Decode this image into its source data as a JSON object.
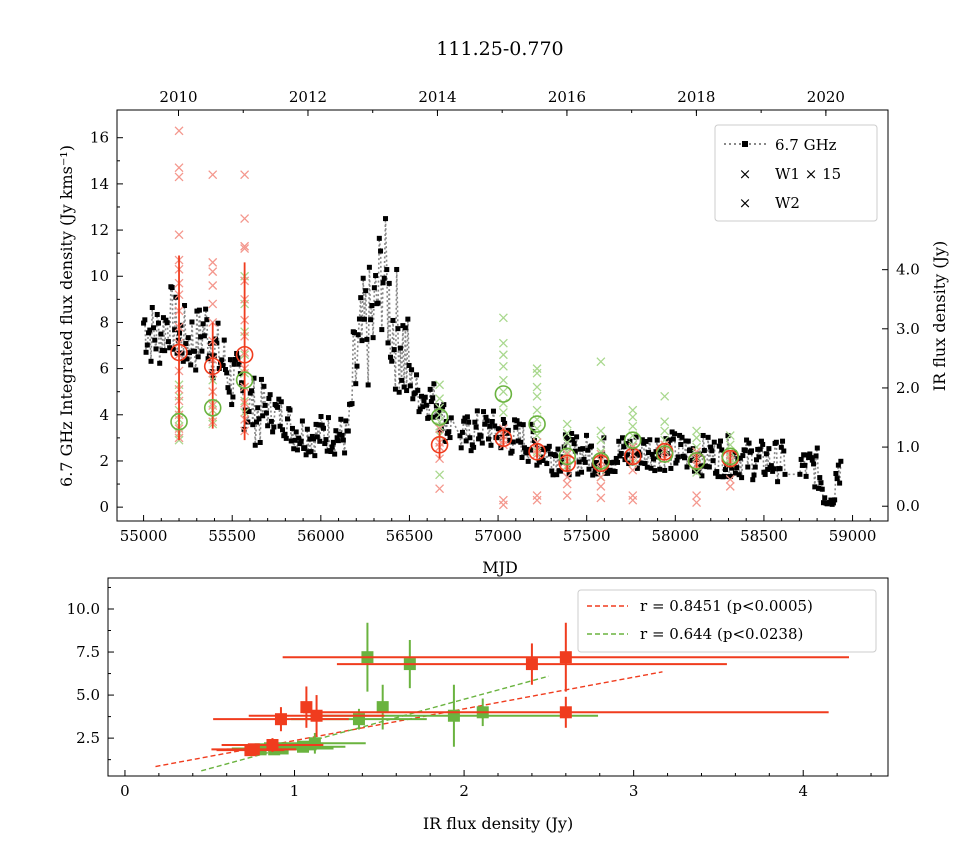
{
  "title": "111.25-0.770",
  "chart_data": [
    {
      "type": "scatter",
      "title": "111.25-0.770",
      "xlabel": "MJD",
      "ylabel": "6.7 GHz Integrated flux density (Jy kms⁻¹)",
      "ylabel_right": "IR flux density (Jy)",
      "xlim": [
        54850,
        59200
      ],
      "ylim": [
        -0.6,
        17.2
      ],
      "y2lim": [
        -0.25,
        6.7
      ],
      "xticks": [
        "55000",
        "55500",
        "56000",
        "56500",
        "57000",
        "57500",
        "58000",
        "58500",
        "59000"
      ],
      "yticks": [
        "0",
        "2",
        "4",
        "6",
        "8",
        "10",
        "12",
        "14",
        "16"
      ],
      "y2ticks": [
        "0.0",
        "1.0",
        "2.0",
        "3.0",
        "4.0"
      ],
      "top_axis_years": [
        "2010",
        "2012",
        "2014",
        "2016",
        "2018",
        "2020"
      ],
      "legend": {
        "placement": "top-right",
        "entries": [
          "6.7 GHz",
          "W1 × 15",
          "W2"
        ]
      },
      "colors": {
        "maser": "#000000",
        "maser_line": "#888888",
        "w1": "#f03c1e",
        "w2": "#6ab33f",
        "w1_light": "#f4978d",
        "w2_light": "#a9d88e"
      },
      "maser_keypoints": [
        [
          55000,
          8.0
        ],
        [
          55050,
          7.5
        ],
        [
          55100,
          7.5
        ],
        [
          55150,
          8.3
        ],
        [
          55200,
          7.4
        ],
        [
          55250,
          7.2
        ],
        [
          55300,
          7.2
        ],
        [
          55350,
          7.8
        ],
        [
          55400,
          6.8
        ],
        [
          55450,
          6.3
        ],
        [
          55500,
          5.5
        ],
        [
          55550,
          5.0
        ],
        [
          55600,
          4.4
        ],
        [
          55650,
          4.0
        ],
        [
          55700,
          4.2
        ],
        [
          55800,
          3.9
        ],
        [
          55850,
          3.3
        ],
        [
          55950,
          3.1
        ],
        [
          56050,
          3.2
        ],
        [
          56150,
          3.0
        ],
        [
          56200,
          6.0
        ],
        [
          56250,
          7.5
        ],
        [
          56300,
          8.0
        ],
        [
          56350,
          10.5
        ],
        [
          56400,
          8.0
        ],
        [
          56450,
          7.5
        ],
        [
          56500,
          5.5
        ],
        [
          56550,
          4.9
        ],
        [
          56600,
          4.7
        ],
        [
          56650,
          4.6
        ],
        [
          56700,
          3.7
        ],
        [
          56800,
          3.0
        ],
        [
          56900,
          3.4
        ],
        [
          57000,
          3.3
        ],
        [
          57100,
          3.0
        ],
        [
          57200,
          2.7
        ],
        [
          57300,
          2.3
        ],
        [
          57400,
          2.3
        ],
        [
          57500,
          2.3
        ],
        [
          57600,
          2.2
        ],
        [
          57700,
          2.3
        ],
        [
          57800,
          2.4
        ],
        [
          57900,
          2.5
        ],
        [
          58000,
          2.4
        ],
        [
          58100,
          2.3
        ],
        [
          58200,
          2.2
        ],
        [
          58300,
          2.2
        ],
        [
          58400,
          2.1
        ],
        [
          58500,
          2.0
        ],
        [
          58600,
          2.0
        ],
        [
          58700,
          1.7
        ],
        [
          58800,
          1.7
        ],
        [
          58870,
          0.0
        ],
        [
          58920,
          1.8
        ]
      ],
      "w1_means": [
        {
          "mjd": 55200,
          "y": 6.7,
          "ylo": 2.9,
          "yhi": 10.9
        },
        {
          "mjd": 55390,
          "y": 6.1,
          "ylo": 3.4,
          "yhi": 8.0
        },
        {
          "mjd": 55570,
          "y": 6.6,
          "ylo": 2.9,
          "yhi": 10.6
        },
        {
          "mjd": 56670,
          "y": 2.7,
          "ylo": 2.1,
          "yhi": 3.3
        },
        {
          "mjd": 57030,
          "y": 2.98,
          "ylo": 2.6,
          "yhi": 3.4
        },
        {
          "mjd": 57220,
          "y": 2.4,
          "ylo": 2.1,
          "yhi": 2.7
        },
        {
          "mjd": 57390,
          "y": 1.9,
          "ylo": 1.6,
          "yhi": 2.2
        },
        {
          "mjd": 57580,
          "y": 1.9,
          "ylo": 1.6,
          "yhi": 2.2
        },
        {
          "mjd": 57760,
          "y": 2.2,
          "ylo": 1.9,
          "yhi": 2.5
        },
        {
          "mjd": 57940,
          "y": 2.4,
          "ylo": 2.1,
          "yhi": 2.7
        },
        {
          "mjd": 58120,
          "y": 2.0,
          "ylo": 1.7,
          "yhi": 2.3
        },
        {
          "mjd": 58310,
          "y": 2.1,
          "ylo": 1.8,
          "yhi": 2.4
        }
      ],
      "w2_means": [
        {
          "mjd": 55200,
          "y": 3.7
        },
        {
          "mjd": 55390,
          "y": 4.3
        },
        {
          "mjd": 55570,
          "y": 5.5
        },
        {
          "mjd": 56670,
          "y": 3.9
        },
        {
          "mjd": 57030,
          "y": 4.9
        },
        {
          "mjd": 57220,
          "y": 3.6
        },
        {
          "mjd": 57390,
          "y": 2.2
        },
        {
          "mjd": 57580,
          "y": 2.0
        },
        {
          "mjd": 57760,
          "y": 2.9
        },
        {
          "mjd": 57940,
          "y": 2.3
        },
        {
          "mjd": 58120,
          "y": 2.0
        },
        {
          "mjd": 58310,
          "y": 2.2
        }
      ],
      "w1_epochs": [
        {
          "mjd": 55200,
          "values": [
            16.3,
            14.7,
            14.3,
            11.8,
            10.7,
            10.3,
            9.7,
            9.2,
            8.5,
            7.8,
            7.1,
            6.6,
            5.9,
            5.1,
            4.6,
            4.0,
            3.4,
            3.0
          ]
        },
        {
          "mjd": 55390,
          "values": [
            14.4,
            10.6,
            10.2,
            9.6,
            8.8,
            8.0,
            7.2,
            6.4,
            5.8,
            5.0,
            4.4,
            3.7
          ]
        },
        {
          "mjd": 55570,
          "values": [
            14.4,
            12.5,
            11.3,
            11.2,
            9.8,
            9.0,
            8.1,
            7.4,
            6.7,
            6.0,
            5.2,
            4.5,
            3.8,
            3.3
          ]
        },
        {
          "mjd": 56670,
          "values": [
            3.4,
            2.8,
            2.6,
            2.1,
            0.8
          ]
        },
        {
          "mjd": 57030,
          "values": [
            3.4,
            3.1,
            2.9,
            2.7,
            0.3,
            0.1
          ]
        },
        {
          "mjd": 57220,
          "values": [
            2.8,
            2.5,
            2.3,
            0.5,
            0.3
          ]
        },
        {
          "mjd": 57390,
          "values": [
            2.3,
            2.0,
            1.7,
            1.3,
            1.0,
            0.5
          ]
        },
        {
          "mjd": 57580,
          "values": [
            2.3,
            2.0,
            1.7,
            1.3,
            0.9,
            0.4
          ]
        },
        {
          "mjd": 57760,
          "values": [
            2.6,
            2.3,
            2.0,
            1.6,
            0.5,
            0.3
          ]
        },
        {
          "mjd": 57940,
          "values": [
            2.7,
            2.4,
            2.1
          ]
        },
        {
          "mjd": 58120,
          "values": [
            2.4,
            2.1,
            1.8,
            0.5,
            0.2
          ]
        },
        {
          "mjd": 58310,
          "values": [
            2.3,
            2.0,
            1.2,
            0.9
          ]
        }
      ],
      "w2_epochs": [
        {
          "mjd": 55200,
          "values": [
            5.3,
            4.8,
            4.2,
            3.8,
            3.5,
            3.2,
            2.9
          ]
        },
        {
          "mjd": 55390,
          "values": [
            5.5,
            5.0,
            4.5,
            4.2,
            3.9,
            3.6
          ]
        },
        {
          "mjd": 55570,
          "values": [
            10.0,
            8.8,
            7.6,
            6.6,
            5.8,
            5.2,
            4.6,
            4.1
          ]
        },
        {
          "mjd": 56670,
          "values": [
            5.3,
            4.7,
            4.3,
            4.0,
            3.7,
            3.5,
            3.1,
            1.4
          ]
        },
        {
          "mjd": 57030,
          "values": [
            8.2,
            7.1,
            6.6,
            6.1,
            5.5,
            5.0,
            4.5,
            4.1
          ]
        },
        {
          "mjd": 57220,
          "values": [
            6.0,
            5.8,
            5.2,
            4.8,
            4.2,
            3.8,
            3.4,
            3.1,
            2.8,
            2.4
          ]
        },
        {
          "mjd": 57390,
          "values": [
            3.6,
            3.2,
            2.8,
            2.4,
            2.1,
            1.8
          ]
        },
        {
          "mjd": 57580,
          "values": [
            6.3,
            3.3,
            2.9,
            2.4,
            2.0,
            1.6,
            1.3
          ]
        },
        {
          "mjd": 57760,
          "values": [
            4.2,
            3.9,
            3.5,
            3.1,
            2.7,
            2.3,
            1.9
          ]
        },
        {
          "mjd": 57940,
          "values": [
            4.8,
            3.7,
            3.3,
            2.9,
            2.5
          ]
        },
        {
          "mjd": 58120,
          "values": [
            3.3,
            3.0,
            2.6,
            2.2,
            1.8,
            1.5
          ]
        },
        {
          "mjd": 58310,
          "values": [
            3.1,
            2.7,
            2.4,
            2.1,
            1.9
          ]
        }
      ]
    },
    {
      "type": "scatter",
      "xlabel": "IR flux density (Jy)",
      "ylabel": "",
      "xlim": [
        -0.1,
        4.5
      ],
      "ylim": [
        0.3,
        11.8
      ],
      "xticks": [
        "0",
        "1",
        "2",
        "3",
        "4"
      ],
      "yticks": [
        "2.5",
        "5.0",
        "7.5",
        "10.0"
      ],
      "legend": {
        "placement": "top-right",
        "entries": [
          "r = 0.8451 (p<0.0005)",
          "r = 0.644 (p<0.0238)"
        ]
      },
      "series": [
        {
          "name": "W1",
          "color": "#f03c1e",
          "points": [
            {
              "x": 2.6,
              "y": 7.2,
              "xerr": [
                1.67,
                1.67
              ],
              "yerr": [
                2.0,
                2.0
              ]
            },
            {
              "x": 2.4,
              "y": 6.8,
              "xerr": [
                1.15,
                1.15
              ],
              "yerr": [
                1.2,
                1.2
              ]
            },
            {
              "x": 2.6,
              "y": 4.0,
              "xerr": [
                1.55,
                1.55
              ],
              "yerr": [
                0.9,
                0.9
              ]
            },
            {
              "x": 1.07,
              "y": 4.3,
              "xerr": [
                0.0,
                0.0
              ],
              "yerr": [
                1.2,
                1.2
              ]
            },
            {
              "x": 1.13,
              "y": 3.8,
              "xerr": [
                0.4,
                0.4
              ],
              "yerr": [
                1.2,
                1.2
              ]
            },
            {
              "x": 0.92,
              "y": 3.6,
              "xerr": [
                0.4,
                0.4
              ],
              "yerr": [
                0.7,
                0.7
              ]
            },
            {
              "x": 0.87,
              "y": 2.1,
              "xerr": [
                0.3,
                0.3
              ],
              "yerr": [
                0.4,
                0.4
              ]
            },
            {
              "x": 0.76,
              "y": 1.85,
              "xerr": [
                0.25,
                0.25
              ],
              "yerr": [
                0.3,
                0.3
              ]
            },
            {
              "x": 0.74,
              "y": 1.8,
              "xerr": [
                0.2,
                0.2
              ],
              "yerr": [
                0.3,
                0.3
              ]
            }
          ],
          "fit": {
            "x": [
              0.18,
              3.17
            ],
            "y": [
              0.85,
              6.35
            ],
            "r": "0.8451"
          }
        },
        {
          "name": "W2",
          "color": "#6ab33f",
          "points": [
            {
              "x": 1.43,
              "y": 7.2,
              "xerr": [
                0.0,
                0.0
              ],
              "yerr": [
                2.0,
                2.0
              ]
            },
            {
              "x": 1.68,
              "y": 6.8,
              "xerr": [
                0.0,
                0.0
              ],
              "yerr": [
                1.4,
                1.4
              ]
            },
            {
              "x": 1.94,
              "y": 3.8,
              "xerr": [
                0.85,
                0.85
              ],
              "yerr": [
                1.8,
                1.8
              ]
            },
            {
              "x": 2.11,
              "y": 4.0,
              "xerr": [
                0.0,
                0.0
              ],
              "yerr": [
                0.8,
                0.8
              ]
            },
            {
              "x": 1.52,
              "y": 4.3,
              "xerr": [
                0.0,
                0.0
              ],
              "yerr": [
                1.3,
                1.3
              ]
            },
            {
              "x": 1.38,
              "y": 3.6,
              "xerr": [
                0.4,
                0.4
              ],
              "yerr": [
                0.6,
                0.6
              ]
            },
            {
              "x": 1.12,
              "y": 2.2,
              "xerr": [
                0.3,
                0.3
              ],
              "yerr": [
                0.6,
                0.6
              ]
            },
            {
              "x": 1.05,
              "y": 2.0,
              "xerr": [
                0.25,
                0.25
              ],
              "yerr": [
                0.3,
                0.3
              ]
            },
            {
              "x": 0.93,
              "y": 1.9,
              "xerr": [
                0.3,
                0.3
              ],
              "yerr": [
                0.3,
                0.3
              ]
            },
            {
              "x": 0.88,
              "y": 1.85,
              "xerr": [
                0.25,
                0.25
              ],
              "yerr": [
                0.3,
                0.3
              ]
            },
            {
              "x": 0.8,
              "y": 1.85,
              "xerr": [
                0.2,
                0.2
              ],
              "yerr": [
                0.3,
                0.3
              ]
            }
          ],
          "fit": {
            "x": [
              0.45,
              2.5
            ],
            "y": [
              0.6,
              6.1
            ],
            "r": "0.644"
          }
        }
      ]
    }
  ]
}
